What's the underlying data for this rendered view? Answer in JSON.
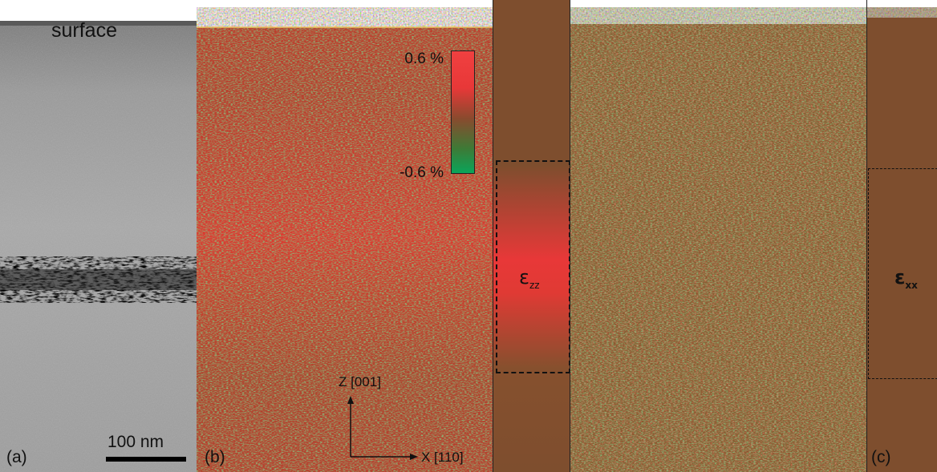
{
  "panels": {
    "a": {
      "label": "(a)",
      "surface_label": "surface",
      "scale_bar": "100 nm"
    },
    "b": {
      "label": "(b)",
      "colorbar_max": "0.6 %",
      "colorbar_min": "-0.6 %",
      "profile_label_main": "ε",
      "profile_label_sub": "zz",
      "axis_z": "Z [001]",
      "axis_x": "X [110]"
    },
    "c": {
      "label": "(c)",
      "profile_label_main": "ε",
      "profile_label_sub": "xx"
    }
  },
  "colors": {
    "strain_positive": "#f04040",
    "strain_zero": "#8a4a2e",
    "strain_negative": "#0aa55a",
    "profile_bg": "#7e4e2e"
  }
}
